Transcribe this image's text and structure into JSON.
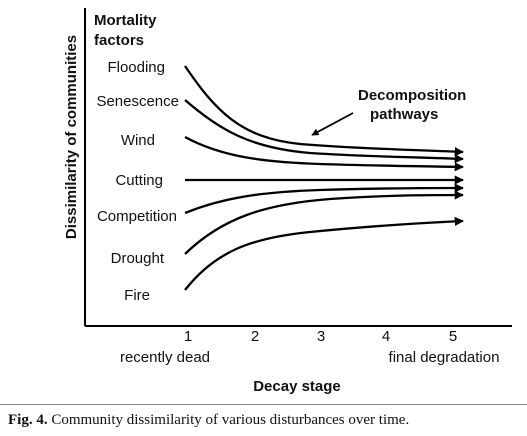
{
  "diagram": {
    "factors_heading": [
      "Mortality",
      "factors"
    ],
    "factors": [
      "Flooding",
      "Senescence",
      "Wind",
      "Cutting",
      "Competition",
      "Drought",
      "Fire"
    ],
    "pathways_label": [
      "Decomposition",
      "pathways"
    ],
    "y_axis_label": "Dissimilarity of communities",
    "x_axis_label": "Decay stage",
    "x_ticks": [
      "1",
      "2",
      "3",
      "4",
      "5"
    ],
    "x_start_label": "recently dead",
    "x_end_label": "final degradation",
    "curve_color": "#000000"
  },
  "caption": {
    "label": "Fig. 4.",
    "text": "Community dissimilarity of various disturbances over time."
  }
}
